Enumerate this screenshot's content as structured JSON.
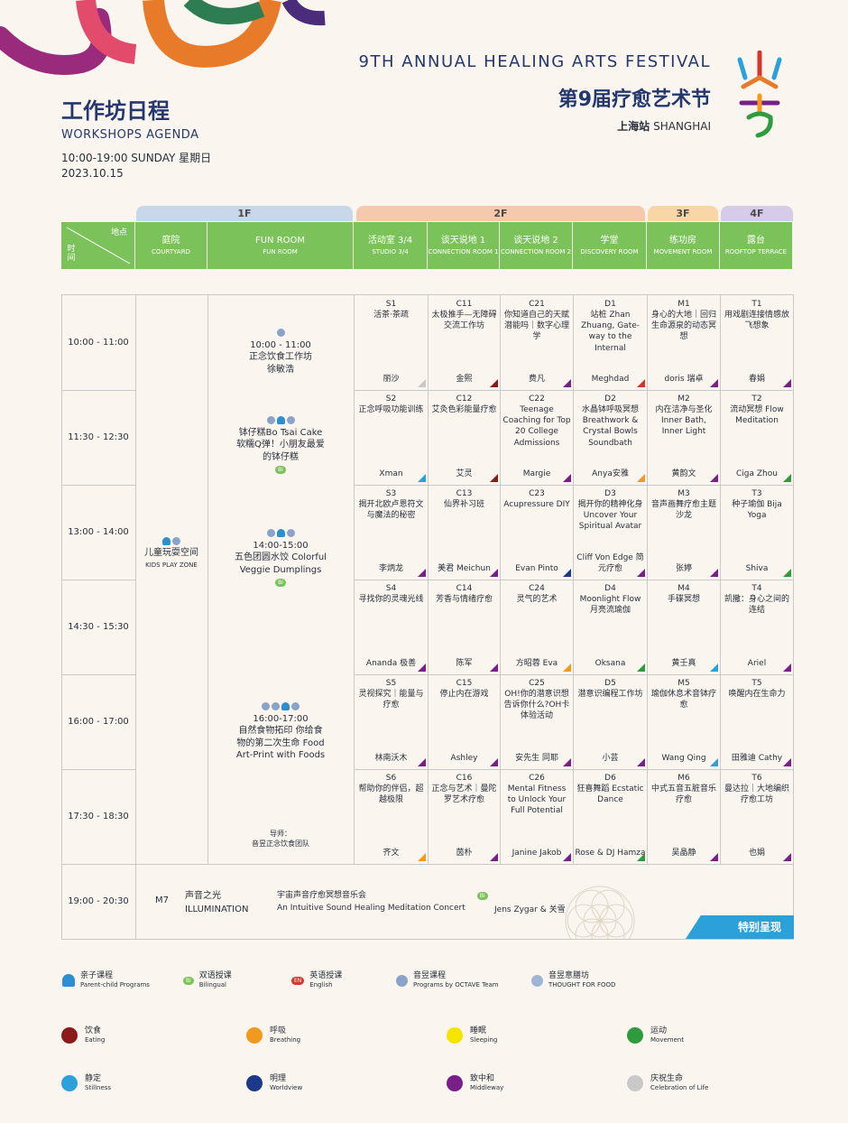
{
  "header": {
    "title_cn": "工作坊日程",
    "title_en": "WORKSHOPS AGENDA",
    "time": "10:00-19:00 SUNDAY 星期日",
    "date": "2023.10.15",
    "festival_en": "9TH ANNUAL HEALING ARTS FESTIVAL",
    "festival_cn": "第9届疗愈艺术节",
    "city_cn": "上海站",
    "city_en": "SHANGHAI"
  },
  "floors": [
    "1F",
    "2F",
    "3F",
    "4F"
  ],
  "table_header": {
    "place_label": "地点",
    "time_label": "时间",
    "venues": [
      {
        "cn": "庭院",
        "en": "COURTYARD"
      },
      {
        "cn": "FUN ROOM",
        "en": "FUN ROOM"
      },
      {
        "cn": "活动室 3/4",
        "en": "STUDIO 3/4"
      },
      {
        "cn": "谈天说地 1",
        "en": "CONNECTION ROOM 1"
      },
      {
        "cn": "谈天说地 2",
        "en": "CONNECTION ROOM 2"
      },
      {
        "cn": "学堂",
        "en": "DISCOVERY ROOM"
      },
      {
        "cn": "练功房",
        "en": "MOVEMENT ROOM"
      },
      {
        "cn": "露台",
        "en": "ROOFTOP TERRACE"
      }
    ]
  },
  "time_slots": [
    "10:00 - 11:00",
    "11:30 - 12:30",
    "13:00 - 14:00",
    "14:30 - 15:30",
    "16:00 - 17:00",
    "17:30 - 18:30",
    "19:00 - 20:30"
  ],
  "courtyard": {
    "cn": "儿童玩耍空间",
    "en": "KIDS PLAY ZONE"
  },
  "funroom": [
    {
      "time": "10:00 - 11:00",
      "title": "正念饮食工作坊",
      "host": "徐敏浩"
    },
    {
      "time": "",
      "title": "钵仔糕Bo Tsai Cake软糯Q弹！小朋友最爱的钵仔糕",
      "host": ""
    },
    {
      "time": "14:00-15:00",
      "title": "五色团圆水饺 Colorful Veggie Dumplings",
      "host": ""
    },
    {
      "time": "16:00-17:00",
      "title": "自然食物拓印 你给食物的第二次生命 Food Art-Print with Foods",
      "host": ""
    }
  ],
  "funroom_guide": "导师：",
  "funroom_guide_name": "音昱正念饮食团队",
  "sessions": [
    {
      "code": "S1",
      "title": "活茶·茶疏",
      "host": "丽沙"
    },
    {
      "code": "C11",
      "title": "太极推手—无障碍交流工作坊",
      "host": "金熙"
    },
    {
      "code": "C21",
      "title": "你知道自己的天赋潜能吗｜数字心理学",
      "host": "费凡"
    },
    {
      "code": "D1",
      "title": "站桩 Zhan Zhuang, Gate-way to the Internal",
      "host": "Meghdad"
    },
    {
      "code": "M1",
      "title": "身心的大地｜回归生命源泉的动态冥想",
      "host": "doris 瑞卓"
    },
    {
      "code": "T1",
      "title": "用戏剧连接情感放飞想象",
      "host": "春娟"
    },
    {
      "code": "S2",
      "title": "正念呼吸功能训练",
      "host": "Xman"
    },
    {
      "code": "C12",
      "title": "艾灸色彩能量疗愈",
      "host": "艾灵"
    },
    {
      "code": "C22",
      "title": "Teenage Coaching for Top 20 College Admissions",
      "host": "Margie"
    },
    {
      "code": "D2",
      "title": "水晶钵呼吸冥想 Breathwork & Crystal Bowls Soundbath",
      "host": "Anya安雅"
    },
    {
      "code": "M2",
      "title": "内在洁净与圣化 Inner Bath, Inner Light",
      "host": "黄韵文"
    },
    {
      "code": "T2",
      "title": "流动冥想 Flow Meditation",
      "host": "Ciga Zhou"
    },
    {
      "code": "S3",
      "title": "揭开北欧卢恩符文与魔法的秘密",
      "host": "李炳龙"
    },
    {
      "code": "C13",
      "title": "仙界补习班",
      "host": "美君 Meichun"
    },
    {
      "code": "C23",
      "title": "Acupressure DIY",
      "host": "Evan Pinto"
    },
    {
      "code": "D3",
      "title": "揭开你的精神化身 Uncover Your Spiritual Avatar",
      "host": "Cliff Von Edge 简元疗愈"
    },
    {
      "code": "M3",
      "title": "音声画舞疗愈主题沙龙",
      "host": "张婷"
    },
    {
      "code": "T3",
      "title": "种子瑜伽 Bija Yoga",
      "host": "Shiva"
    },
    {
      "code": "S4",
      "title": "寻找你的灵魂光线",
      "host": "Ananda 极善"
    },
    {
      "code": "C14",
      "title": "芳香与情绪疗愈",
      "host": "陈军"
    },
    {
      "code": "C24",
      "title": "灵气的艺术",
      "host": "方昭蓉 Eva"
    },
    {
      "code": "D4",
      "title": "Moonlight Flow 月亮流瑜伽",
      "host": "Oksana"
    },
    {
      "code": "M4",
      "title": "手碟冥想",
      "host": "黄壬真"
    },
    {
      "code": "T4",
      "title": "凯撒：身心之间的连结",
      "host": "Ariel"
    },
    {
      "code": "S5",
      "title": "灵视探究｜能量与疗愈",
      "host": "林南沃木"
    },
    {
      "code": "C15",
      "title": "停止内在游戏",
      "host": "Ashley"
    },
    {
      "code": "C25",
      "title": "OH!你的潜意识想告诉你什么?OH卡体验活动",
      "host": "安先生 同耶"
    },
    {
      "code": "D5",
      "title": "潜意识编程工作坊",
      "host": "小芸"
    },
    {
      "code": "M5",
      "title": "瑜伽休息术音钵疗愈",
      "host": "Wang Qing"
    },
    {
      "code": "T5",
      "title": "唤醒内在生命力",
      "host": "田雅迪 Cathy"
    },
    {
      "code": "S6",
      "title": "帮助你的伴侣，超越极限",
      "host": "齐文"
    },
    {
      "code": "C16",
      "title": "正念与艺术｜曼陀罗艺术疗愈",
      "host": "茵朴"
    },
    {
      "code": "C26",
      "title": "Mental Fitness to Unlock Your Full Potential",
      "host": "Janine Jakob"
    },
    {
      "code": "D6",
      "title": "狂喜舞蹈 Ecstatic Dance",
      "host": "Rose & DJ Hamza"
    },
    {
      "code": "M6",
      "title": "中式五音五脏音乐疗愈",
      "host": "吴晶静"
    },
    {
      "code": "T6",
      "title": "曼达拉｜大地编织疗愈工坊",
      "host": "也娟"
    }
  ],
  "evening": {
    "code": "M7",
    "title_cn": "声音之光",
    "title_en": "ILLUMINATION",
    "desc_cn": "宇宙声音疗愈冥想音乐会",
    "desc_en": "An Intuitive Sound Healing Meditation Concert",
    "host": "Jens Zygar & 关雪",
    "special": "特别呈现"
  },
  "legend_types": [
    {
      "cn": "亲子课程",
      "en": "Parent-child Programs",
      "icon": "parent-child-icon"
    },
    {
      "cn": "双语授课",
      "en": "Bilingual",
      "icon": "bilingual-badge-icon"
    },
    {
      "cn": "英语授课",
      "en": "English",
      "icon": "english-badge-icon"
    },
    {
      "cn": "音昱课程",
      "en": "Programs by OCTAVE Team",
      "icon": "octave-icon"
    },
    {
      "cn": "音昱意膳坊",
      "en": "THOUGHT FOR FOOD",
      "icon": "thought-for-food-icon"
    }
  ],
  "legend_themes": [
    {
      "cn": "饮食",
      "en": "Eating",
      "color": "#8b1a1a"
    },
    {
      "cn": "呼吸",
      "en": "Breathing",
      "color": "#f29a1f"
    },
    {
      "cn": "睡眠",
      "en": "Sleeping",
      "color": "#f5e400"
    },
    {
      "cn": "运动",
      "en": "Movement",
      "color": "#2e9b3e"
    },
    {
      "cn": "静定",
      "en": "Stillness",
      "color": "#2ba0d9"
    },
    {
      "cn": "明理",
      "en": "Worldview",
      "color": "#1d3a8a"
    },
    {
      "cn": "致中和",
      "en": "Middleway",
      "color": "#7a1f8a"
    },
    {
      "cn": "庆祝生命",
      "en": "Celebration of Life",
      "color": "#c9c9c9"
    }
  ],
  "colors": {
    "navy": "#24386e",
    "header_green": "#7cc25b",
    "floor_1f": "#c8d7ea",
    "floor_2f": "#f6c9ad",
    "floor_3f": "#f8d6a6",
    "floor_4f": "#d6cbe9"
  }
}
